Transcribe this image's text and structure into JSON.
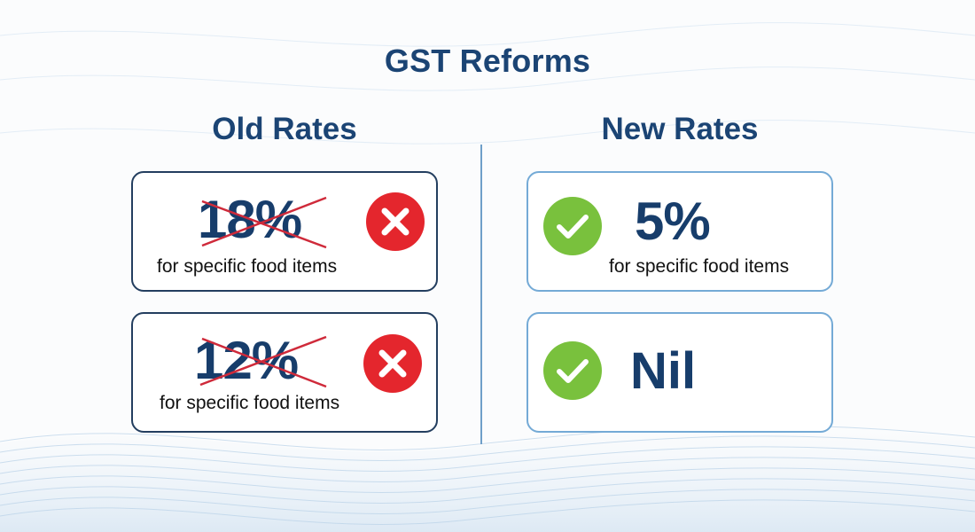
{
  "title": "GST Reforms",
  "old": {
    "heading": "Old Rates",
    "items": [
      {
        "rate": "18%",
        "note": "for specific food items",
        "status_icon": "x-circle-icon"
      },
      {
        "rate": "12%",
        "note": "for specific food items",
        "status_icon": "x-circle-icon"
      }
    ]
  },
  "new": {
    "heading": "New Rates",
    "items": [
      {
        "rate": "5%",
        "note": "for specific food items",
        "status_icon": "check-circle-icon"
      },
      {
        "rate": "Nil",
        "status_icon": "check-circle-icon"
      }
    ]
  },
  "colors": {
    "navy": "#173d6b",
    "strike_red": "#cf2a3a",
    "cross_red": "#e4262d",
    "check_green": "#79c13d",
    "old_border": "#233e5f",
    "new_border": "#74aad6"
  }
}
